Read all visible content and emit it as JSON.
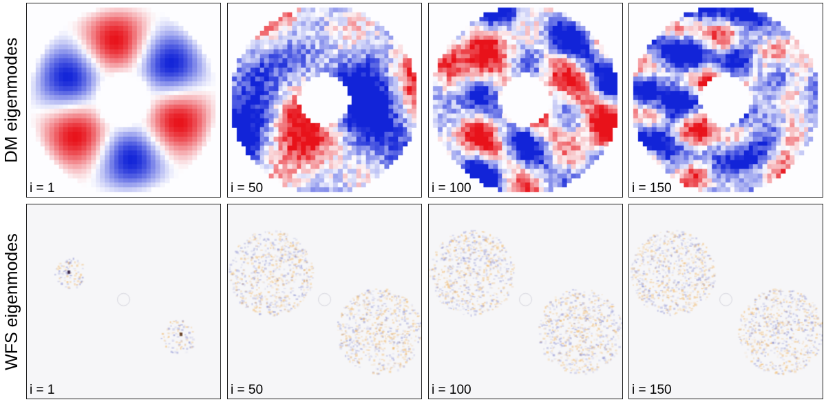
{
  "rows": [
    {
      "id": "dm",
      "label": "DM eigenmodes",
      "panels": [
        {
          "label": "i = 1",
          "mode": 1
        },
        {
          "label": "i = 50",
          "mode": 50
        },
        {
          "label": "i = 100",
          "mode": 100
        },
        {
          "label": "i = 150",
          "mode": 150
        }
      ]
    },
    {
      "id": "wfs",
      "label": "WFS eigenmodes",
      "panels": [
        {
          "label": "i = 1",
          "mode": 1
        },
        {
          "label": "i = 50",
          "mode": 50
        },
        {
          "label": "i = 100",
          "mode": 100
        },
        {
          "label": "i = 150",
          "mode": 150
        }
      ]
    }
  ],
  "colors": {
    "dm_positive": "#e8121a",
    "dm_negative": "#1224d8",
    "wfs_positive": "#f0a030",
    "wfs_negative": "#6a70c8",
    "wfs_background": "#f6f6f8",
    "panel_border": "#222222"
  }
}
